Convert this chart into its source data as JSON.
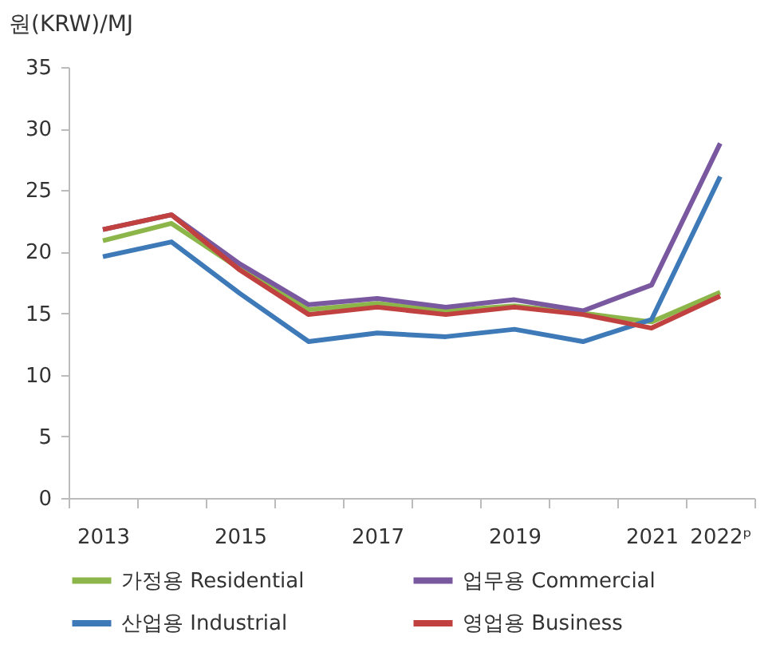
{
  "chart_data": {
    "type": "line",
    "ylabel": "원(KRW)/MJ",
    "categories": [
      "2013",
      null,
      "2015",
      null,
      "2017",
      null,
      "2019",
      null,
      "2021",
      "2022ᵖ"
    ],
    "series": [
      {
        "name": "가정용 Residential",
        "color": "#8db64a",
        "values": [
          20.9,
          22.3,
          18.6,
          15.3,
          15.8,
          15.2,
          15.6,
          15.0,
          14.3,
          16.7
        ]
      },
      {
        "name": "업무용 Commercial",
        "color": "#7a58a0",
        "values": [
          21.8,
          23.0,
          19.0,
          15.7,
          16.2,
          15.5,
          16.1,
          15.2,
          17.3,
          28.8
        ]
      },
      {
        "name": "산업용 Industrial",
        "color": "#3f7ab8",
        "values": [
          19.6,
          20.8,
          16.6,
          12.7,
          13.4,
          13.1,
          13.7,
          12.7,
          14.5,
          26.1
        ]
      },
      {
        "name": "영업용 Business",
        "color": "#c0413f",
        "values": [
          21.8,
          23.0,
          18.5,
          14.9,
          15.5,
          14.9,
          15.5,
          14.9,
          13.8,
          16.4
        ]
      }
    ],
    "ylim": [
      0,
      35
    ],
    "yticks": [
      0,
      5,
      10,
      15,
      20,
      25,
      30,
      35
    ],
    "grid": false,
    "legend": "bottom",
    "marker": "none",
    "line_style": "solid"
  }
}
